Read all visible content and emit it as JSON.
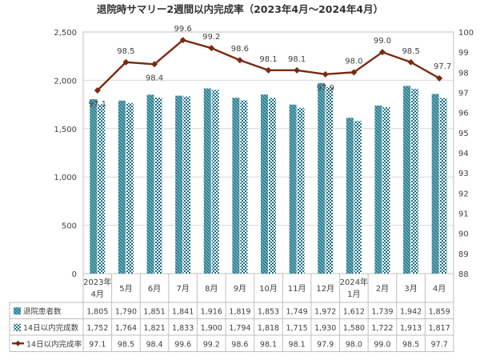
{
  "chart_data": {
    "type": "bar",
    "title": "退院時サマリー2週間以内完成率（2023年4月～2024年4月）",
    "categories": [
      [
        "2023年",
        "4月"
      ],
      [
        "5月"
      ],
      [
        "6月"
      ],
      [
        "7月"
      ],
      [
        "8月"
      ],
      [
        "9月"
      ],
      [
        "10月"
      ],
      [
        "11月"
      ],
      [
        "12月"
      ],
      [
        "2024年",
        "1月"
      ],
      [
        "2月"
      ],
      [
        "3月"
      ],
      [
        "4月"
      ]
    ],
    "series": [
      {
        "name": "退院患者数",
        "kind": "bar",
        "axis": "left",
        "pattern": "hatched",
        "color": "#2e8296",
        "values": [
          1805,
          1790,
          1851,
          1841,
          1916,
          1819,
          1853,
          1749,
          1972,
          1612,
          1739,
          1942,
          1859
        ]
      },
      {
        "name": "14日以内完成数",
        "kind": "bar",
        "axis": "left",
        "pattern": "checkered",
        "color": "#1d6f86",
        "values": [
          1752,
          1764,
          1821,
          1833,
          1900,
          1794,
          1818,
          1715,
          1930,
          1580,
          1722,
          1913,
          1817
        ]
      },
      {
        "name": "14日以内完成率",
        "kind": "line",
        "axis": "right",
        "marker": "diamond",
        "color": "#7a2a12",
        "values": [
          97.1,
          98.5,
          98.4,
          99.6,
          99.2,
          98.6,
          98.1,
          98.1,
          97.9,
          98.0,
          99.0,
          98.5,
          97.7
        ],
        "labels": [
          "97.1",
          "98.5",
          "98.4",
          "99.6",
          "99.2",
          "98.6",
          "98.1",
          "98.1",
          "97.9",
          "98.0",
          "99.0",
          "98.5",
          "97.7"
        ]
      }
    ],
    "y_left": {
      "range": [
        0,
        2500
      ],
      "ticks": [
        "0",
        "500",
        "1,000",
        "1,500",
        "2,000",
        "2,500"
      ]
    },
    "y_right": {
      "range": [
        88,
        100
      ],
      "ticks": [
        "88",
        "89",
        "90",
        "91",
        "92",
        "93",
        "94",
        "95",
        "96",
        "97",
        "98",
        "99",
        "100"
      ]
    },
    "grid": true,
    "legend": "data-table-below",
    "table_rows": [
      [
        "1,805",
        "1,790",
        "1,851",
        "1,841",
        "1,916",
        "1,819",
        "1,853",
        "1,749",
        "1,972",
        "1,612",
        "1,739",
        "1,942",
        "1,859"
      ],
      [
        "1,752",
        "1,764",
        "1,821",
        "1,833",
        "1,900",
        "1,794",
        "1,818",
        "1,715",
        "1,930",
        "1,580",
        "1,722",
        "1,913",
        "1,817"
      ],
      [
        "97.1",
        "98.5",
        "98.4",
        "99.6",
        "99.2",
        "98.6",
        "98.1",
        "98.1",
        "97.9",
        "98.0",
        "99.0",
        "98.5",
        "97.7"
      ]
    ]
  }
}
